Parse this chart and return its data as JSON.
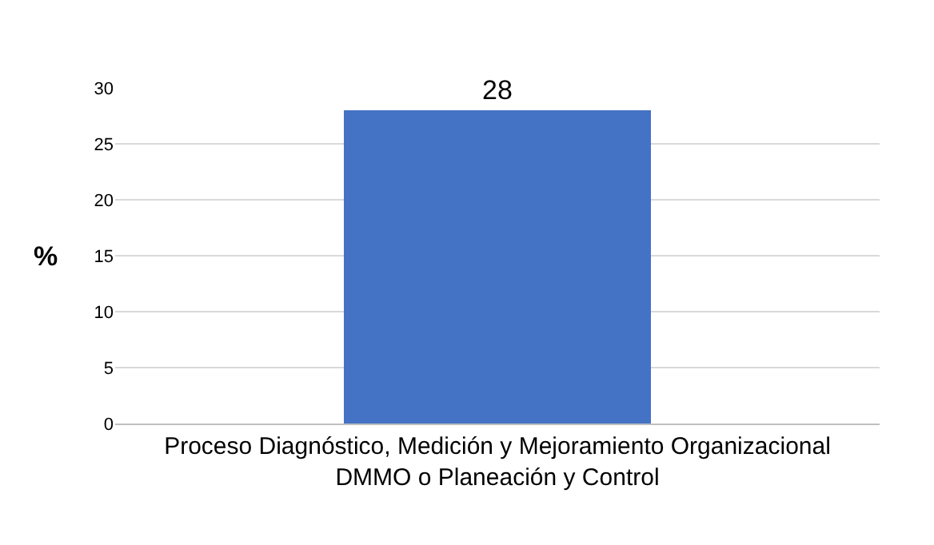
{
  "chart_data": {
    "type": "bar",
    "categories": [
      "Proceso Diagnóstico, Medición y Mejoramiento Organizacional\nDMMO o Planeación y Control"
    ],
    "values": [
      28
    ],
    "color": "#4472c4",
    "ylabel": "%",
    "ylim": [
      0,
      30
    ],
    "yticks": [
      0,
      5,
      10,
      15,
      20,
      25,
      30
    ],
    "grid": "y",
    "data_labels": true
  }
}
